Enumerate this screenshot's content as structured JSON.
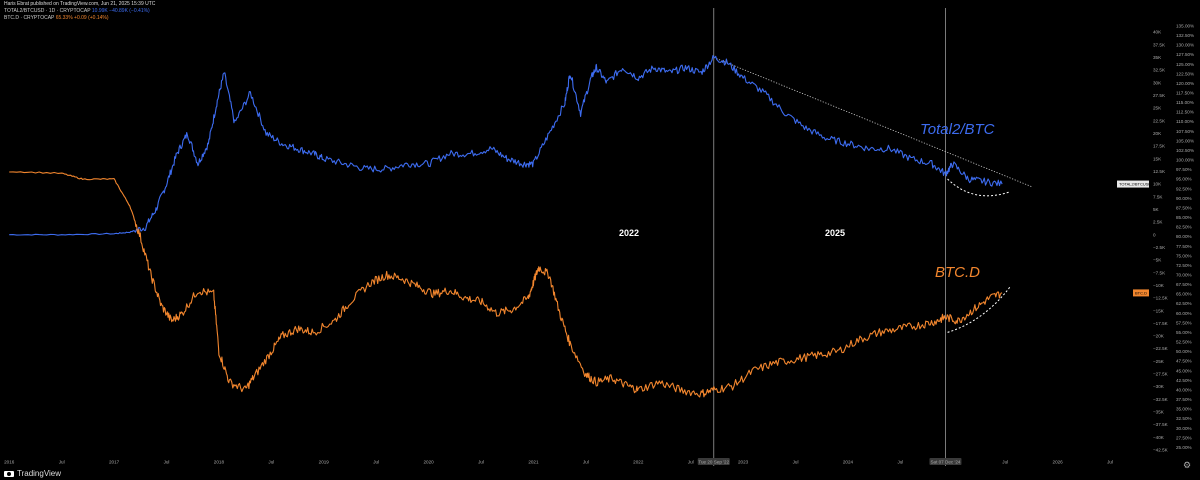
{
  "header": {
    "publisher": "Haris Ebrat published on TradingView.com, Jun 21, 2025 15:39 UTC",
    "series1_name": "TOTAL2/BTCUSD · 1D · CRYPTOCAP",
    "series1_value": "10.99K  −40.89K (−0.41%)",
    "series2_name": "BTC.D · CRYPTOCAP",
    "series2_value": "65.33%  +0.09 (+0.14%)"
  },
  "footer": {
    "brand": "TradingView",
    "settings_icon": "gear-icon"
  },
  "chart_data": {
    "type": "line",
    "title": "",
    "x_tick_labels": [
      "2016",
      "Jul",
      "2017",
      "Jul",
      "2018",
      "Jul",
      "2019",
      "Jul",
      "2020",
      "Jul",
      "2021",
      "Jul",
      "2022",
      "Jul",
      "Tue 20 Sep '22",
      "2023",
      "Jul",
      "2024",
      "Jul",
      "Sat 07 Dec '24",
      "Jul",
      "2026",
      "Jul"
    ],
    "xlim": [
      2015.95,
      2026.9
    ],
    "left_axis": {
      "range": [
        -43.5,
        42
      ],
      "ticks": [
        -42.5,
        -40,
        -37.5,
        -35,
        -32.5,
        -30,
        -27.5,
        -25,
        -22.5,
        -20,
        -17.5,
        -15,
        -12.5,
        -10,
        -7.5,
        -5,
        -2.5,
        0,
        2.5,
        5,
        7.5,
        10,
        12.5,
        15,
        17.5,
        20,
        22.5,
        25,
        27.5,
        30,
        32.5,
        35,
        37.5,
        40
      ],
      "tick_labels": [
        "−42.5K",
        "−40K",
        "−37.5K",
        "−35K",
        "−32.5K",
        "−30K",
        "−27.5K",
        "−25K",
        "−22.5K",
        "−20K",
        "−17.5K",
        "−15K",
        "−12.5K",
        "−10K",
        "−7.5K",
        "−5K",
        "−2.5K",
        "0",
        "2.5K",
        "5K",
        "7.5K",
        "10K",
        "12.5K",
        "15K",
        "17.5K",
        "20K",
        "22.5K",
        "25K",
        "27.5K",
        "30K",
        "32.5K",
        "35K",
        "37.5K",
        "40K"
      ]
    },
    "right_axis": {
      "range": [
        23,
        136
      ],
      "ticks": [
        25,
        27.5,
        30,
        32.5,
        35,
        37.5,
        40,
        42.5,
        45,
        47.5,
        50,
        52.5,
        55,
        57.5,
        60,
        62.5,
        65,
        67.5,
        70,
        72.5,
        75,
        77.5,
        80,
        82.5,
        85,
        87.5,
        90,
        92.5,
        95,
        97.5,
        100,
        102.5,
        105,
        107.5,
        110,
        112.5,
        115,
        117.5,
        120,
        122.5,
        125,
        127.5,
        130,
        132.5,
        135
      ],
      "tick_labels": [
        "25.00%",
        "27.50%",
        "30.00%",
        "32.50%",
        "35.00%",
        "37.50%",
        "40.00%",
        "42.50%",
        "45.00%",
        "47.50%",
        "50.00%",
        "52.50%",
        "55.00%",
        "57.50%",
        "60.00%",
        "62.50%",
        "65.00%",
        "67.50%",
        "70.00%",
        "72.50%",
        "75.00%",
        "77.50%",
        "80.00%",
        "82.50%",
        "85.00%",
        "87.50%",
        "90.00%",
        "92.50%",
        "95.00%",
        "97.50%",
        "100.00%",
        "102.50%",
        "105.00%",
        "107.50%",
        "110.00%",
        "112.50%",
        "115.00%",
        "117.50%",
        "120.00%",
        "122.50%",
        "125.00%",
        "127.50%",
        "130.00%",
        "132.50%",
        "135.00%"
      ]
    },
    "grid": false,
    "series": [
      {
        "name": "TOTAL2/BTC",
        "axis": "left",
        "color": "#3d6cf0",
        "x": [
          2016.0,
          2016.5,
          2017.0,
          2017.15,
          2017.3,
          2017.4,
          2017.5,
          2017.6,
          2017.7,
          2017.8,
          2017.9,
          2017.98,
          2018.05,
          2018.15,
          2018.3,
          2018.45,
          2018.6,
          2018.75,
          2018.9,
          2019.0,
          2019.2,
          2019.4,
          2019.6,
          2019.8,
          2020.0,
          2020.2,
          2020.4,
          2020.6,
          2020.75,
          2020.9,
          2021.0,
          2021.15,
          2021.3,
          2021.35,
          2021.45,
          2021.55,
          2021.6,
          2021.7,
          2021.85,
          2022.0,
          2022.15,
          2022.3,
          2022.45,
          2022.6,
          2022.72,
          2022.85,
          2023.0,
          2023.2,
          2023.4,
          2023.6,
          2023.8,
          2024.0,
          2024.2,
          2024.4,
          2024.6,
          2024.8,
          2024.93,
          2025.0,
          2025.15,
          2025.3,
          2025.47
        ],
        "values": [
          0,
          0,
          0.2,
          0.5,
          1.5,
          5,
          10,
          16,
          20,
          14,
          18,
          26,
          32,
          22,
          28,
          20,
          18,
          17,
          16,
          15,
          14,
          13,
          13,
          14,
          14,
          16,
          16,
          17,
          15,
          14,
          14,
          20,
          26,
          32,
          24,
          31,
          33,
          30,
          33,
          31,
          33,
          32,
          33,
          32,
          35,
          34,
          31,
          28,
          24,
          21,
          19,
          18,
          17,
          17,
          15,
          14,
          12,
          14,
          11,
          10.5,
          10
        ]
      },
      {
        "name": "BTC.D",
        "axis": "right",
        "color": "#f2862e",
        "x": [
          2016.0,
          2016.5,
          2016.7,
          2017.0,
          2017.15,
          2017.25,
          2017.35,
          2017.45,
          2017.55,
          2017.65,
          2017.8,
          2017.95,
          2018.0,
          2018.1,
          2018.25,
          2018.35,
          2018.5,
          2018.6,
          2018.75,
          2018.9,
          2019.1,
          2019.25,
          2019.45,
          2019.6,
          2019.75,
          2019.9,
          2020.05,
          2020.2,
          2020.35,
          2020.5,
          2020.65,
          2020.8,
          2020.95,
          2021.0,
          2021.05,
          2021.15,
          2021.25,
          2021.35,
          2021.5,
          2021.6,
          2021.75,
          2021.9,
          2022.0,
          2022.2,
          2022.4,
          2022.6,
          2022.72,
          2022.9,
          2023.1,
          2023.3,
          2023.5,
          2023.7,
          2023.9,
          2024.1,
          2024.3,
          2024.5,
          2024.7,
          2024.85,
          2024.93,
          2025.05,
          2025.2,
          2025.35,
          2025.47
        ],
        "values": [
          97,
          96.5,
          95,
          95,
          88,
          80,
          70,
          62,
          58,
          60,
          66,
          65,
          50,
          42,
          40,
          44,
          50,
          54,
          56,
          55,
          58,
          63,
          68,
          70,
          69,
          67,
          65,
          66,
          64,
          63,
          60,
          61,
          64,
          68,
          72,
          70,
          60,
          52,
          44,
          42,
          43,
          41,
          40,
          42,
          40,
          39,
          40,
          41,
          45,
          47,
          48,
          49,
          50,
          53,
          55,
          56,
          57,
          58,
          59,
          58,
          61,
          64,
          65.3
        ]
      }
    ],
    "annotations": {
      "label_total2": "Total2/BTC",
      "label_btcd": "BTC.D",
      "year_2022": "2022",
      "year_2025": "2025",
      "vlines_x": [
        2022.72,
        2024.93
      ],
      "trendline": {
        "x": [
          2022.72,
          2025.75
        ],
        "y": [
          35,
          9.5
        ]
      },
      "curve_total2": {
        "x": [
          2024.95,
          2025.2,
          2025.55
        ],
        "y": [
          11,
          8,
          8.5
        ]
      },
      "curve_btcd": {
        "x": [
          2024.95,
          2025.3,
          2025.55
        ],
        "y": [
          55,
          58,
          67
        ]
      },
      "price_badge_left": "TOTAL2/BTCUSD",
      "price_badge_left_value": 10,
      "price_badge_right": "BTC.D",
      "price_badge_right_value": 65.3
    }
  }
}
